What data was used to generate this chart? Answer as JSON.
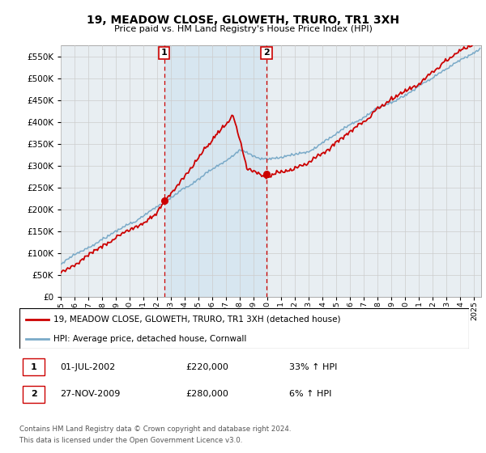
{
  "title": "19, MEADOW CLOSE, GLOWETH, TRURO, TR1 3XH",
  "subtitle": "Price paid vs. HM Land Registry's House Price Index (HPI)",
  "legend_line1": "19, MEADOW CLOSE, GLOWETH, TRURO, TR1 3XH (detached house)",
  "legend_line2": "HPI: Average price, detached house, Cornwall",
  "sale1_date": "01-JUL-2002",
  "sale1_price": "£220,000",
  "sale1_hpi": "33% ↑ HPI",
  "sale2_date": "27-NOV-2009",
  "sale2_price": "£280,000",
  "sale2_hpi": "6% ↑ HPI",
  "footnote1": "Contains HM Land Registry data © Crown copyright and database right 2024.",
  "footnote2": "This data is licensed under the Open Government Licence v3.0.",
  "ylim": [
    0,
    575000
  ],
  "yticks": [
    0,
    50000,
    100000,
    150000,
    200000,
    250000,
    300000,
    350000,
    400000,
    450000,
    500000,
    550000
  ],
  "red_color": "#cc0000",
  "blue_color": "#7aaac8",
  "shade_color": "#d5e5f0",
  "vline_color": "#cc0000",
  "bg_color": "#e8eef2",
  "plot_bg": "#ffffff",
  "grid_color": "#cccccc",
  "marker1_x": 2002.5,
  "marker1_y": 220000,
  "marker2_x": 2009.92,
  "marker2_y": 280000,
  "xlim_start": 1995,
  "xlim_end": 2025.5
}
